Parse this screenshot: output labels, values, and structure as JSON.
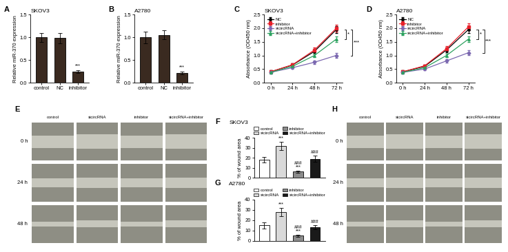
{
  "chart_data": [
    {
      "type": "bar",
      "panel_label": "A",
      "title": "SKOV3",
      "y_label": "Relative miR-370 expression",
      "categories": [
        "control",
        "NC",
        "inhibitor"
      ],
      "values": [
        1.0,
        0.98,
        0.25
      ],
      "errors": [
        0.1,
        0.12,
        0.03
      ],
      "color": "#3a2a20",
      "ylim": [
        0,
        1.5
      ],
      "yticks": [
        {
          "value": 0,
          "label": "0.0"
        },
        {
          "value": 0.5,
          "label": "0.5"
        },
        {
          "value": 1.0,
          "label": "1.0"
        },
        {
          "value": 1.5,
          "label": "1.5"
        }
      ],
      "annotations": [
        {
          "category": "inhibitor",
          "text": "***"
        }
      ]
    },
    {
      "type": "bar",
      "panel_label": "B",
      "title": "A2780",
      "y_label": "Relative miR-370 expression",
      "categories": [
        "control",
        "NC",
        "inhibitor"
      ],
      "values": [
        1.0,
        1.05,
        0.22
      ],
      "errors": [
        0.13,
        0.1,
        0.03
      ],
      "color": "#3a2a20",
      "ylim": [
        0,
        1.5
      ],
      "yticks": [
        {
          "value": 0,
          "label": "0.0"
        },
        {
          "value": 0.5,
          "label": "0.5"
        },
        {
          "value": 1.0,
          "label": "1.0"
        },
        {
          "value": 1.5,
          "label": "1.5"
        }
      ],
      "annotations": [
        {
          "category": "inhibitor",
          "text": "***"
        }
      ]
    },
    {
      "type": "line",
      "panel_label": "C",
      "title": "SKOV3",
      "y_label": "Absorbance (OD450 nm)",
      "categories": [
        "0 h",
        "24 h",
        "48 h",
        "72 h"
      ],
      "series": [
        {
          "name": "NC",
          "color": "#000000",
          "marker": "circle",
          "values": [
            0.4,
            0.65,
            1.15,
            1.95
          ],
          "errors": [
            0.05,
            0.05,
            0.08,
            0.12
          ]
        },
        {
          "name": "inhibitor",
          "color": "#e8202a",
          "marker": "square",
          "values": [
            0.4,
            0.66,
            1.2,
            2.0
          ],
          "errors": [
            0.05,
            0.05,
            0.08,
            0.12
          ]
        },
        {
          "name": "sicircRNA",
          "color": "#7b68b0",
          "marker": "diamond",
          "values": [
            0.38,
            0.55,
            0.75,
            1.0
          ],
          "errors": [
            0.05,
            0.05,
            0.06,
            0.08
          ]
        },
        {
          "name": "sicircRNA+inhibitor",
          "color": "#2ca25f",
          "marker": "triangle",
          "values": [
            0.38,
            0.6,
            1.0,
            1.6
          ],
          "errors": [
            0.05,
            0.05,
            0.07,
            0.1
          ]
        }
      ],
      "ylim": [
        0,
        2.5
      ],
      "yticks": [
        {
          "value": 0,
          "label": "0.0"
        },
        {
          "value": 0.5,
          "label": "0.5"
        },
        {
          "value": 1.0,
          "label": "1.0"
        },
        {
          "value": 1.5,
          "label": "1.5"
        },
        {
          "value": 2.0,
          "label": "2.0"
        },
        {
          "value": 2.5,
          "label": "2.5"
        }
      ],
      "legend": "upper left",
      "annotations": [
        {
          "text": "*",
          "from": "NC",
          "to": "sicircRNA+inhibitor"
        },
        {
          "text": "***",
          "from": "NC",
          "to": "sicircRNA"
        }
      ]
    },
    {
      "type": "line",
      "panel_label": "D",
      "title": "A2780",
      "y_label": "Absorbance (OD450 nm)",
      "categories": [
        "0 h",
        "24 h",
        "48 h",
        "72 h"
      ],
      "series": [
        {
          "name": "NC",
          "color": "#000000",
          "marker": "circle",
          "values": [
            0.4,
            0.6,
            1.2,
            1.95
          ],
          "errors": [
            0.05,
            0.05,
            0.08,
            0.12
          ]
        },
        {
          "name": "inhibitor",
          "color": "#e8202a",
          "marker": "square",
          "values": [
            0.4,
            0.62,
            1.25,
            2.05
          ],
          "errors": [
            0.05,
            0.05,
            0.08,
            0.12
          ]
        },
        {
          "name": "sicircRNA",
          "color": "#7b68b0",
          "marker": "diamond",
          "values": [
            0.38,
            0.5,
            0.8,
            1.1
          ],
          "errors": [
            0.05,
            0.05,
            0.06,
            0.08
          ]
        },
        {
          "name": "sicircRNA+inhibitor",
          "color": "#2ca25f",
          "marker": "triangle",
          "values": [
            0.38,
            0.55,
            1.0,
            1.6
          ],
          "errors": [
            0.05,
            0.05,
            0.07,
            0.1
          ]
        }
      ],
      "ylim": [
        0,
        2.5
      ],
      "yticks": [
        {
          "value": 0,
          "label": "0.0"
        },
        {
          "value": 0.5,
          "label": "0.5"
        },
        {
          "value": 1.0,
          "label": "1.0"
        },
        {
          "value": 1.5,
          "label": "1.5"
        },
        {
          "value": 2.0,
          "label": "2.0"
        },
        {
          "value": 2.5,
          "label": "2.5"
        }
      ],
      "legend": "upper left",
      "annotations": [
        {
          "text": "*",
          "from": "NC",
          "to": "sicircRNA+inhibitor"
        },
        {
          "text": "***",
          "from": "NC",
          "to": "sicircRNA"
        }
      ]
    },
    {
      "type": "bar",
      "panel_label": "F",
      "title": "SKOV3",
      "y_label": "% of wound area",
      "categories": [
        "control",
        "sicircRNA",
        "inhibitor",
        "sicircRNA+inhibitor"
      ],
      "values": [
        18,
        32,
        6,
        19
      ],
      "errors": [
        3,
        4,
        1,
        3
      ],
      "colors": [
        "#ffffff",
        "#d9d9d9",
        "#8c8c8c",
        "#1a1a1a"
      ],
      "ylim": [
        0,
        40
      ],
      "yticks": [
        0,
        10,
        20,
        30,
        40
      ],
      "tick_labels": "y",
      "legend": "top",
      "annotations": [
        {
          "category": "sicircRNA",
          "text": "***"
        },
        {
          "category": "inhibitor",
          "text": "***"
        },
        {
          "category": "inhibitor",
          "text": "###"
        },
        {
          "category": "sicircRNA+inhibitor",
          "text": "###"
        }
      ]
    },
    {
      "type": "bar",
      "panel_label": "G",
      "title": "A2780",
      "y_label": "% of wound area",
      "categories": [
        "control",
        "sicircRNA",
        "inhibitor",
        "sicircRNA+inhibitor"
      ],
      "values": [
        15,
        28,
        5,
        13
      ],
      "errors": [
        3,
        4,
        1,
        2
      ],
      "colors": [
        "#ffffff",
        "#d9d9d9",
        "#8c8c8c",
        "#1a1a1a"
      ],
      "ylim": [
        0,
        40
      ],
      "yticks": [
        0,
        10,
        20,
        30,
        40
      ],
      "tick_labels": "y",
      "legend": "top",
      "annotations": [
        {
          "category": "sicircRNA",
          "text": "***"
        },
        {
          "category": "inhibitor",
          "text": "***"
        },
        {
          "category": "inhibitor",
          "text": "###"
        },
        {
          "category": "sicircRNA+inhibitor",
          "text": "###"
        }
      ]
    }
  ],
  "image_panels": [
    {
      "panel_label": "E",
      "columns": [
        "control",
        "sicircRNA",
        "inhibitor",
        "sicircRNA+inhibitor"
      ],
      "rows": [
        "0 h",
        "24 h",
        "48 h"
      ]
    },
    {
      "panel_label": "H",
      "columns": [
        "control",
        "sicircRNA",
        "inhibitor",
        "sicircRNA+inhibitor"
      ],
      "rows": [
        "0 h",
        "24 h",
        "48 h"
      ]
    }
  ]
}
